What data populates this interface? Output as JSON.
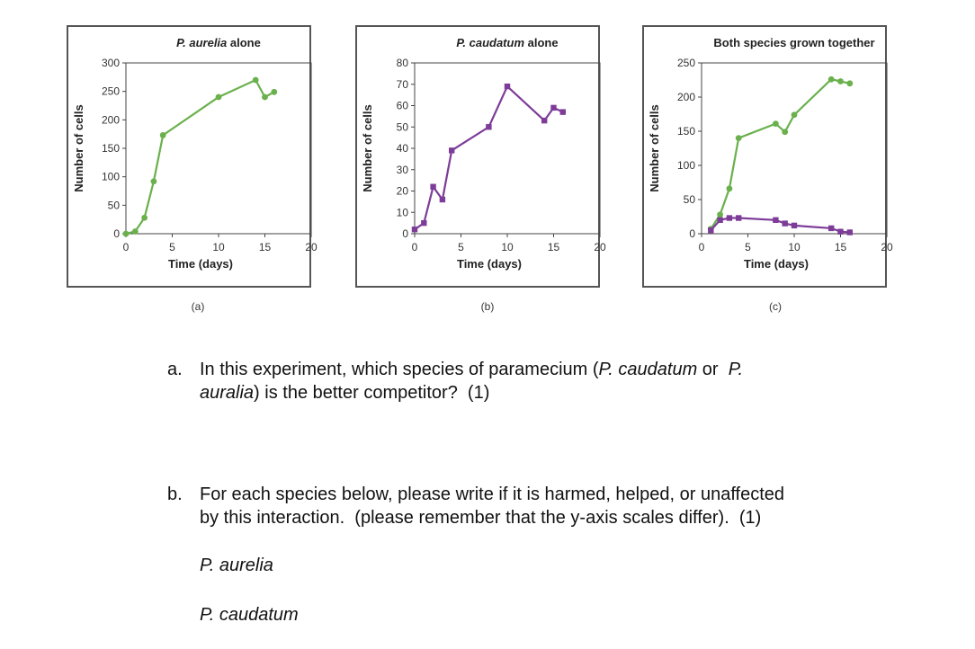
{
  "chart_data": [
    {
      "type": "line",
      "title": "P. aurelia alone",
      "xlabel": "Time (days)",
      "ylabel": "Number of cells",
      "xlim": [
        0,
        20
      ],
      "ylim": [
        0,
        300
      ],
      "xticks": [
        0,
        5,
        10,
        15,
        20
      ],
      "yticks": [
        0,
        50,
        100,
        150,
        200,
        250,
        300
      ],
      "caption": "(a)",
      "series": [
        {
          "color": "#6ab04c",
          "marker": "circle",
          "x": [
            0,
            1,
            2,
            3,
            4,
            10,
            14,
            15,
            16
          ],
          "y": [
            0,
            4,
            28,
            92,
            173,
            240,
            270,
            240,
            249
          ]
        }
      ]
    },
    {
      "type": "line",
      "title": "P. caudatum alone",
      "xlabel": "Time (days)",
      "ylabel": "Number of cells",
      "xlim": [
        0,
        20
      ],
      "ylim": [
        0,
        80
      ],
      "xticks": [
        0,
        5,
        10,
        15,
        20
      ],
      "yticks": [
        0,
        10,
        20,
        30,
        40,
        50,
        60,
        70,
        80
      ],
      "caption": "(b)",
      "series": [
        {
          "color": "#7d3c98",
          "marker": "square",
          "x": [
            0,
            1,
            2,
            3,
            4,
            8,
            10,
            14,
            15,
            16
          ],
          "y": [
            2,
            5,
            22,
            16,
            39,
            50,
            69,
            53,
            59,
            57
          ]
        }
      ]
    },
    {
      "type": "line",
      "title": "Both species grown together",
      "xlabel": "Time (days)",
      "ylabel": "Number of cells",
      "xlim": [
        0,
        20
      ],
      "ylim": [
        0,
        250
      ],
      "xticks": [
        0,
        5,
        10,
        15,
        20
      ],
      "yticks": [
        0,
        50,
        100,
        150,
        200,
        250
      ],
      "caption": "(c)",
      "series": [
        {
          "color": "#6ab04c",
          "marker": "circle",
          "x": [
            1,
            2,
            3,
            4,
            8,
            9,
            10,
            14,
            15,
            16
          ],
          "y": [
            7,
            28,
            66,
            140,
            161,
            149,
            174,
            226,
            223,
            220
          ]
        },
        {
          "color": "#7d3c98",
          "marker": "square",
          "x": [
            1,
            2,
            3,
            4,
            8,
            9,
            10,
            14,
            15,
            16
          ],
          "y": [
            5,
            20,
            23,
            23,
            20,
            15,
            12,
            8,
            3,
            2
          ]
        }
      ]
    }
  ],
  "questions": {
    "a": {
      "letter": "a.",
      "line1_pre": "In this experiment, which species of paramecium (",
      "line1_sp1": "P. caudatum",
      "line1_mid": " or  ",
      "line1_sp2": "P.",
      "line2_sp2": "auralia",
      "line2_post": ") is the better competitor?  (1)"
    },
    "b": {
      "letter": "b.",
      "line1": "For each species below, please write if it is harmed, helped, or unaffected",
      "line2": "by this interaction.  (please remember that the y-axis scales differ).  (1)"
    },
    "species": [
      "P. aurelia",
      "P. caudatum"
    ]
  }
}
